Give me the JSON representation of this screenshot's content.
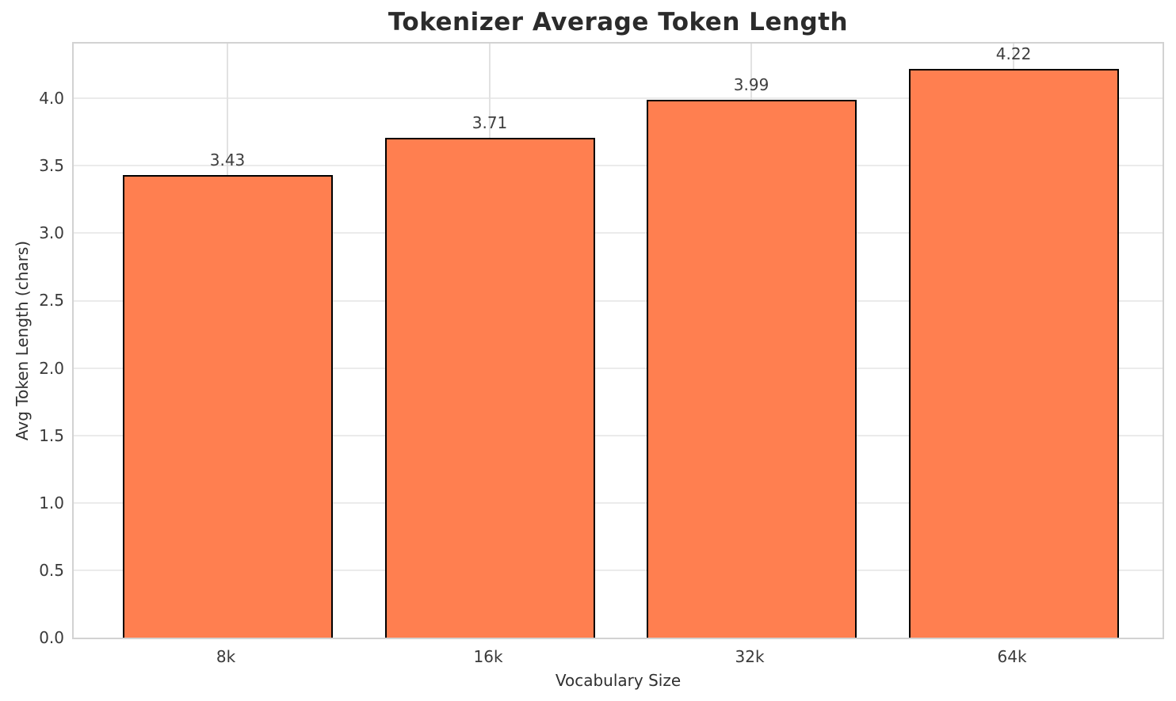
{
  "figure": {
    "background_color": "#FFFFFF"
  },
  "chart_data": {
    "type": "bar",
    "title": "Tokenizer Average Token Length",
    "xlabel": "Vocabulary Size",
    "ylabel": "Avg Token Length (chars)",
    "categories": [
      "8k",
      "16k",
      "32k",
      "64k"
    ],
    "values": [
      3.43,
      3.71,
      3.99,
      4.22
    ],
    "bar_value_labels": [
      "3.43",
      "3.71",
      "3.99",
      "4.22"
    ],
    "ylim": [
      0,
      4.43
    ],
    "ytick_labels": [
      "0.0",
      "0.5",
      "1.0",
      "1.5",
      "2.0",
      "2.5",
      "3.0",
      "3.5",
      "4.0"
    ],
    "ytick_values": [
      0,
      0.5,
      1,
      1.5,
      2,
      2.5,
      3,
      3.5,
      4
    ],
    "grid": "both",
    "legend_position": "none",
    "colors": {
      "bar_fill": "#FF7F50",
      "bar_edge": "#000000",
      "grid_horizontal": "#EBEBEB",
      "grid_vertical": "#E2E2E2",
      "spine": "#D2D2D2",
      "title_text": "#2B2B2B",
      "tick_text": "#3A3A3A",
      "axis_label_text": "#303030",
      "value_label_text": "#3F3F3F"
    }
  }
}
